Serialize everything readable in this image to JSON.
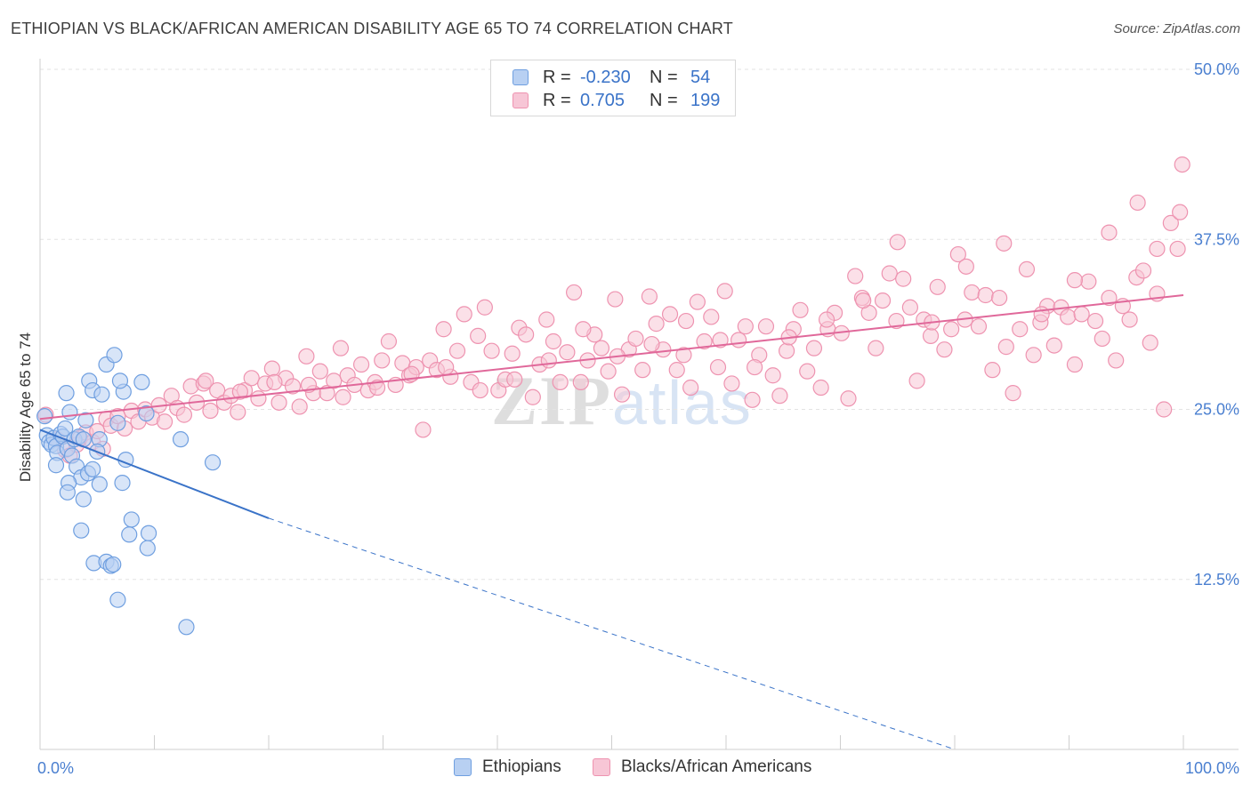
{
  "header": {
    "title": "ETHIOPIAN VS BLACK/AFRICAN AMERICAN DISABILITY AGE 65 TO 74 CORRELATION CHART",
    "source": "Source: ZipAtlas.com"
  },
  "watermark": {
    "zip": "ZIP",
    "atlas": "atlas"
  },
  "legend": {
    "rows": [
      {
        "r_label": "R =",
        "r_value": "-0.230",
        "n_label": "N =",
        "n_value": "54",
        "fill": "#b8d0f2",
        "stroke": "#6f9fe0"
      },
      {
        "r_label": "R =",
        "r_value": "0.705",
        "n_label": "N =",
        "n_value": "199",
        "fill": "#f7c6d6",
        "stroke": "#ee93b0"
      }
    ]
  },
  "bottom_legend": {
    "items": [
      {
        "label": "Ethiopians",
        "fill": "#b8d0f2",
        "stroke": "#6f9fe0"
      },
      {
        "label": "Blacks/African Americans",
        "fill": "#f7c6d6",
        "stroke": "#ee93b0"
      }
    ]
  },
  "chart_data": {
    "type": "scatter",
    "title": "ETHIOPIAN VS BLACK/AFRICAN AMERICAN DISABILITY AGE 65 TO 74 CORRELATION CHART",
    "xlabel": "",
    "ylabel": "Disability Age 65 to 74",
    "xlim": [
      0,
      100
    ],
    "ylim": [
      0,
      50
    ],
    "x_tick_labels": [
      "0.0%",
      "100.0%"
    ],
    "y_ticks": [
      12.5,
      25.0,
      37.5,
      50.0
    ],
    "y_tick_labels": [
      "12.5%",
      "25.0%",
      "37.5%",
      "50.0%"
    ],
    "grid": true,
    "series": [
      {
        "name": "Ethiopians",
        "color": "#6f9fe0",
        "fill": "#b8d0f2",
        "line_color": "#3a73c8",
        "trend": {
          "x0": 0,
          "y0": 23.5,
          "x1": 20,
          "y1": 17.0,
          "dashed_to_x": 80,
          "dashed_to_y": -2.5
        },
        "points": [
          [
            0.4,
            24.5
          ],
          [
            0.6,
            23.1
          ],
          [
            0.8,
            22.6
          ],
          [
            1.0,
            22.4
          ],
          [
            1.2,
            22.9
          ],
          [
            1.4,
            22.3
          ],
          [
            1.5,
            21.8
          ],
          [
            1.8,
            23.2
          ],
          [
            2.0,
            23.0
          ],
          [
            2.2,
            23.6
          ],
          [
            2.4,
            22.1
          ],
          [
            2.6,
            24.8
          ],
          [
            2.8,
            21.6
          ],
          [
            3.0,
            22.8
          ],
          [
            3.2,
            20.8
          ],
          [
            3.4,
            23.0
          ],
          [
            3.6,
            20.0
          ],
          [
            3.8,
            22.8
          ],
          [
            4.0,
            24.2
          ],
          [
            4.2,
            20.3
          ],
          [
            1.4,
            20.9
          ],
          [
            2.5,
            19.6
          ],
          [
            2.4,
            18.9
          ],
          [
            3.8,
            18.4
          ],
          [
            3.6,
            16.1
          ],
          [
            4.3,
            27.1
          ],
          [
            4.6,
            26.4
          ],
          [
            5.4,
            26.1
          ],
          [
            5.8,
            28.3
          ],
          [
            6.5,
            29.0
          ],
          [
            7.3,
            26.3
          ],
          [
            5.2,
            22.8
          ],
          [
            5.0,
            21.9
          ],
          [
            6.8,
            24.0
          ],
          [
            7.5,
            21.3
          ],
          [
            7.2,
            19.6
          ],
          [
            5.2,
            19.5
          ],
          [
            4.6,
            20.6
          ],
          [
            9.3,
            24.7
          ],
          [
            8.9,
            27.0
          ],
          [
            7.0,
            27.1
          ],
          [
            12.3,
            22.8
          ],
          [
            15.1,
            21.1
          ],
          [
            8.0,
            16.9
          ],
          [
            7.8,
            15.8
          ],
          [
            9.5,
            15.9
          ],
          [
            9.4,
            14.8
          ],
          [
            4.7,
            13.7
          ],
          [
            5.8,
            13.8
          ],
          [
            6.2,
            13.5
          ],
          [
            6.4,
            13.6
          ],
          [
            6.8,
            11.0
          ],
          [
            12.8,
            9.0
          ],
          [
            2.3,
            26.2
          ]
        ]
      },
      {
        "name": "Blacks/African Americans",
        "color": "#ee93b0",
        "fill": "#f7c6d6",
        "line_color": "#e0689a",
        "trend": {
          "x0": 0,
          "y0": 24.3,
          "x1": 100,
          "y1": 33.4
        },
        "points": [
          [
            0.5,
            24.6
          ],
          [
            1.5,
            22.8
          ],
          [
            2.2,
            22.0
          ],
          [
            2.6,
            21.6
          ],
          [
            3.2,
            22.4
          ],
          [
            3.5,
            22.9
          ],
          [
            4.0,
            23.3
          ],
          [
            4.6,
            22.6
          ],
          [
            5.0,
            23.4
          ],
          [
            5.5,
            22.1
          ],
          [
            5.8,
            24.3
          ],
          [
            6.2,
            23.8
          ],
          [
            6.8,
            24.5
          ],
          [
            7.4,
            23.6
          ],
          [
            8.0,
            24.9
          ],
          [
            8.6,
            24.1
          ],
          [
            9.2,
            25.0
          ],
          [
            9.8,
            24.4
          ],
          [
            10.4,
            25.3
          ],
          [
            10.9,
            24.1
          ],
          [
            11.5,
            26.0
          ],
          [
            12.0,
            25.1
          ],
          [
            12.6,
            24.6
          ],
          [
            13.2,
            26.7
          ],
          [
            13.7,
            25.5
          ],
          [
            14.3,
            26.9
          ],
          [
            14.9,
            24.9
          ],
          [
            15.5,
            26.4
          ],
          [
            16.1,
            25.5
          ],
          [
            16.7,
            26.0
          ],
          [
            17.3,
            24.8
          ],
          [
            17.9,
            26.4
          ],
          [
            18.5,
            27.3
          ],
          [
            19.1,
            25.8
          ],
          [
            19.7,
            26.9
          ],
          [
            20.3,
            28.0
          ],
          [
            20.9,
            25.5
          ],
          [
            21.5,
            27.3
          ],
          [
            22.1,
            26.7
          ],
          [
            22.7,
            25.2
          ],
          [
            23.3,
            28.9
          ],
          [
            23.9,
            26.2
          ],
          [
            24.5,
            27.8
          ],
          [
            25.1,
            26.2
          ],
          [
            25.7,
            27.1
          ],
          [
            26.3,
            29.5
          ],
          [
            26.9,
            27.5
          ],
          [
            27.5,
            26.8
          ],
          [
            28.1,
            28.3
          ],
          [
            28.7,
            26.4
          ],
          [
            29.3,
            27.0
          ],
          [
            29.9,
            28.6
          ],
          [
            30.5,
            30.0
          ],
          [
            31.1,
            26.8
          ],
          [
            31.7,
            28.4
          ],
          [
            32.3,
            27.5
          ],
          [
            32.9,
            28.1
          ],
          [
            33.5,
            23.5
          ],
          [
            34.1,
            28.6
          ],
          [
            34.7,
            27.9
          ],
          [
            35.3,
            30.9
          ],
          [
            35.9,
            27.4
          ],
          [
            36.5,
            29.3
          ],
          [
            37.1,
            32.0
          ],
          [
            37.7,
            27.0
          ],
          [
            38.3,
            30.4
          ],
          [
            38.9,
            32.5
          ],
          [
            39.5,
            29.3
          ],
          [
            40.1,
            26.4
          ],
          [
            40.7,
            27.2
          ],
          [
            41.3,
            29.1
          ],
          [
            41.9,
            31.0
          ],
          [
            42.5,
            30.5
          ],
          [
            43.1,
            25.9
          ],
          [
            43.7,
            28.3
          ],
          [
            44.3,
            31.6
          ],
          [
            44.9,
            30.0
          ],
          [
            45.5,
            27.0
          ],
          [
            46.1,
            29.2
          ],
          [
            46.7,
            33.6
          ],
          [
            47.3,
            27.0
          ],
          [
            47.9,
            28.6
          ],
          [
            48.5,
            30.5
          ],
          [
            49.1,
            29.5
          ],
          [
            49.7,
            27.8
          ],
          [
            50.3,
            33.1
          ],
          [
            50.9,
            26.1
          ],
          [
            51.5,
            29.4
          ],
          [
            52.1,
            30.2
          ],
          [
            52.7,
            27.9
          ],
          [
            53.3,
            33.3
          ],
          [
            53.9,
            31.3
          ],
          [
            54.5,
            29.4
          ],
          [
            55.1,
            32.0
          ],
          [
            55.7,
            27.9
          ],
          [
            56.3,
            29.0
          ],
          [
            56.9,
            26.6
          ],
          [
            57.5,
            32.9
          ],
          [
            58.1,
            30.0
          ],
          [
            58.7,
            31.8
          ],
          [
            59.3,
            28.1
          ],
          [
            59.9,
            33.7
          ],
          [
            60.5,
            26.9
          ],
          [
            61.1,
            30.1
          ],
          [
            61.7,
            31.1
          ],
          [
            62.3,
            25.7
          ],
          [
            62.9,
            29.0
          ],
          [
            63.5,
            31.1
          ],
          [
            64.1,
            27.5
          ],
          [
            64.7,
            26.0
          ],
          [
            65.3,
            29.3
          ],
          [
            65.9,
            30.9
          ],
          [
            66.5,
            32.3
          ],
          [
            67.1,
            27.8
          ],
          [
            67.7,
            29.5
          ],
          [
            68.3,
            26.6
          ],
          [
            68.9,
            30.9
          ],
          [
            69.5,
            32.1
          ],
          [
            70.1,
            30.6
          ],
          [
            70.7,
            25.8
          ],
          [
            71.3,
            34.8
          ],
          [
            71.9,
            33.2
          ],
          [
            72.5,
            32.1
          ],
          [
            73.1,
            29.5
          ],
          [
            73.7,
            33.0
          ],
          [
            74.3,
            35.0
          ],
          [
            74.9,
            31.5
          ],
          [
            75.5,
            34.6
          ],
          [
            76.1,
            32.5
          ],
          [
            76.7,
            27.1
          ],
          [
            77.3,
            31.6
          ],
          [
            77.9,
            30.4
          ],
          [
            78.5,
            34.0
          ],
          [
            79.1,
            29.4
          ],
          [
            79.7,
            30.9
          ],
          [
            80.3,
            36.4
          ],
          [
            80.9,
            31.6
          ],
          [
            81.5,
            33.6
          ],
          [
            82.1,
            31.1
          ],
          [
            82.7,
            33.4
          ],
          [
            83.3,
            27.9
          ],
          [
            83.9,
            33.2
          ],
          [
            84.5,
            29.6
          ],
          [
            85.1,
            26.2
          ],
          [
            85.7,
            30.9
          ],
          [
            86.3,
            35.3
          ],
          [
            86.9,
            29.0
          ],
          [
            87.5,
            31.4
          ],
          [
            88.1,
            32.6
          ],
          [
            88.7,
            29.7
          ],
          [
            89.3,
            32.5
          ],
          [
            89.9,
            31.8
          ],
          [
            90.5,
            28.3
          ],
          [
            91.1,
            32.0
          ],
          [
            91.7,
            34.4
          ],
          [
            92.3,
            31.5
          ],
          [
            92.9,
            30.2
          ],
          [
            93.5,
            33.2
          ],
          [
            94.1,
            28.6
          ],
          [
            94.7,
            32.6
          ],
          [
            95.3,
            31.6
          ],
          [
            95.9,
            34.7
          ],
          [
            96.5,
            35.2
          ],
          [
            97.1,
            29.9
          ],
          [
            97.7,
            33.5
          ],
          [
            98.3,
            25.0
          ],
          [
            98.9,
            38.7
          ],
          [
            99.5,
            36.8
          ],
          [
            99.9,
            43.0
          ],
          [
            99.7,
            39.5
          ],
          [
            97.7,
            36.8
          ],
          [
            96.0,
            40.2
          ],
          [
            93.5,
            38.0
          ],
          [
            90.5,
            34.5
          ],
          [
            87.6,
            32.0
          ],
          [
            84.3,
            37.2
          ],
          [
            81.0,
            35.5
          ],
          [
            78.0,
            31.4
          ],
          [
            75.0,
            37.3
          ],
          [
            72.0,
            33.0
          ],
          [
            68.8,
            31.6
          ],
          [
            65.5,
            30.3
          ],
          [
            62.5,
            28.1
          ],
          [
            59.5,
            30.1
          ],
          [
            56.5,
            31.5
          ],
          [
            53.5,
            29.8
          ],
          [
            50.5,
            28.9
          ],
          [
            47.5,
            30.9
          ],
          [
            44.5,
            28.6
          ],
          [
            41.5,
            27.2
          ],
          [
            38.5,
            26.4
          ],
          [
            35.5,
            28.1
          ],
          [
            32.5,
            27.6
          ],
          [
            29.5,
            26.6
          ],
          [
            26.5,
            25.9
          ],
          [
            23.5,
            26.8
          ],
          [
            20.5,
            27.0
          ],
          [
            17.5,
            26.3
          ],
          [
            14.5,
            27.1
          ]
        ]
      }
    ]
  }
}
